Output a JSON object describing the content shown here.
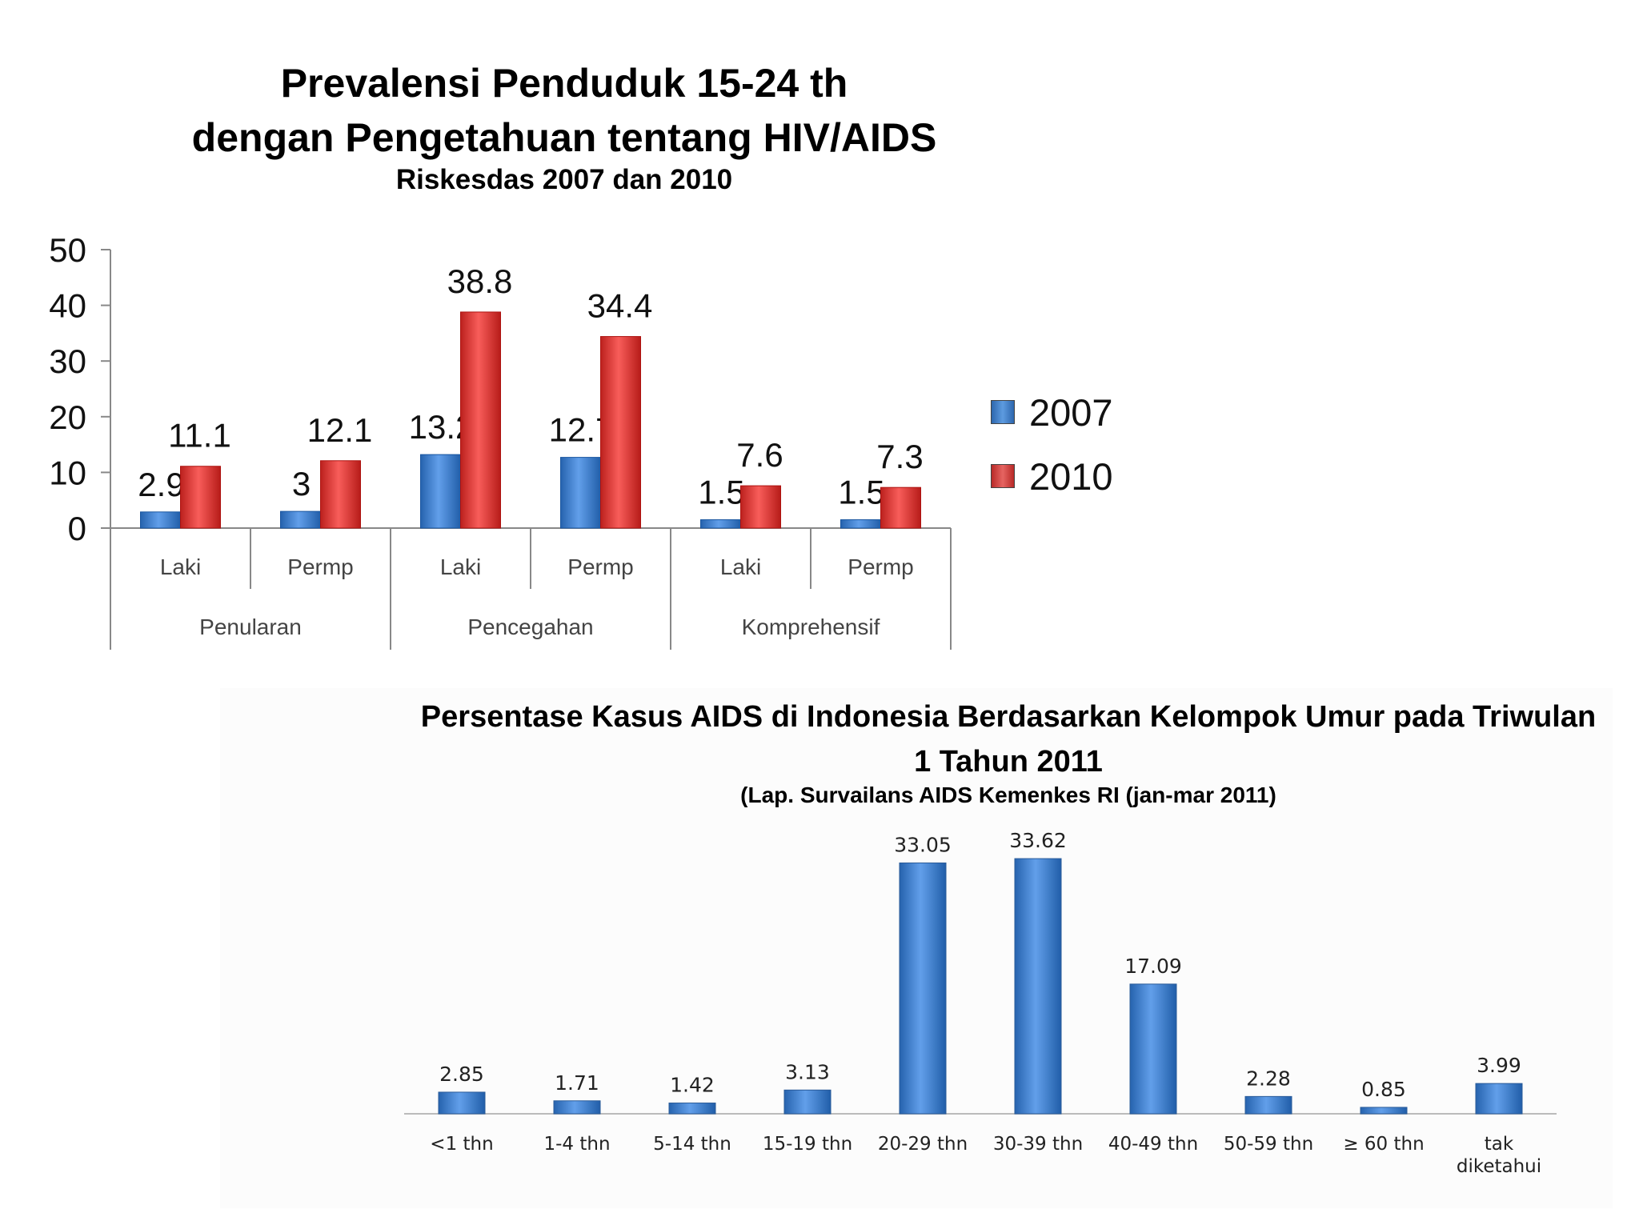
{
  "chart_data": [
    {
      "type": "bar",
      "title": "Prevalensi Penduduk 15-24 th dengan Pengetahuan tentang HIV/AIDS",
      "title_lines": [
        "Prevalensi Penduduk 15-24 th",
        "dengan Pengetahuan tentang HIV/AIDS"
      ],
      "subtitle": "Riskesdas 2007 dan 2010",
      "groups": [
        "Penularan",
        "Pencegahan",
        "Komprehensif"
      ],
      "categories": [
        "Laki",
        "Permp",
        "Laki",
        "Permp",
        "Laki",
        "Permp"
      ],
      "series": [
        {
          "name": "2007",
          "color": "#3f7cc7",
          "values": [
            2.9,
            3,
            13.2,
            12.7,
            1.5,
            1.5
          ]
        },
        {
          "name": "2010",
          "color": "#d53a37",
          "values": [
            11.1,
            12.1,
            38.8,
            34.4,
            7.6,
            7.3
          ]
        }
      ],
      "yticks": [
        0,
        10,
        20,
        30,
        40,
        50
      ],
      "ylim": [
        0,
        50
      ],
      "legend": "right",
      "grid": false
    },
    {
      "type": "bar",
      "title": "Persentase Kasus AIDS di Indonesia Berdasarkan Kelompok Umur pada Triwulan 1 Tahun 2011",
      "title_lines": [
        "Persentase Kasus AIDS di Indonesia Berdasarkan Kelompok Umur pada Triwulan",
        "1 Tahun 2011"
      ],
      "subtitle": "(Lap. Survailans AIDS Kemenkes RI (jan-mar 2011)",
      "categories": [
        "<1 thn",
        "1-4 thn",
        "5-14 thn",
        "15-19 thn",
        "20-29 thn",
        "30-39 thn",
        "40-49 thn",
        "50-59 thn",
        "≥ 60 thn",
        "tak diketahui"
      ],
      "values": [
        2.85,
        1.71,
        1.42,
        3.13,
        33.05,
        33.62,
        17.09,
        2.28,
        0.85,
        3.99
      ],
      "value_labels": [
        "2.85",
        "1.71",
        "1.42",
        "3.13",
        "33.05",
        "33.62",
        "17.09",
        "2.28",
        "0.85",
        "3.99"
      ],
      "color": "#3f7cc7",
      "ylim": [
        0,
        35
      ],
      "grid": false
    }
  ]
}
